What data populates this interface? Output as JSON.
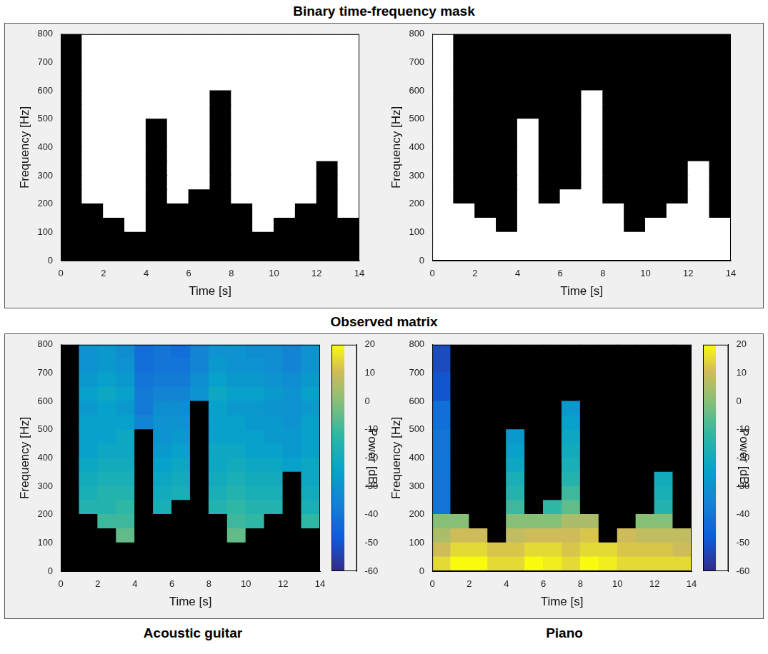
{
  "figure": {
    "titles": [
      "Binary time-frequency mask",
      "Observed matrix"
    ],
    "captions": [
      "Acoustic guitar",
      "Piano"
    ]
  },
  "chart_data": [
    {
      "type": "heatmap",
      "x_label": "Time [s]",
      "y_label": "Frequency [Hz]",
      "xlim": [
        0,
        14
      ],
      "xticks": [
        0,
        2,
        4,
        6,
        8,
        10,
        12,
        14
      ],
      "ylim": [
        0,
        800
      ],
      "yticks": [
        0,
        100,
        200,
        300,
        400,
        500,
        600,
        700,
        800
      ],
      "x_edges": [
        0,
        1,
        2,
        3,
        4,
        5,
        6,
        7,
        8,
        9,
        10,
        11,
        12,
        13,
        14
      ],
      "y_edges": [
        0,
        50,
        100,
        150,
        200,
        250,
        300,
        350,
        400,
        450,
        500,
        550,
        600,
        650,
        700,
        750,
        800
      ],
      "cells": [
        [
          0,
          0,
          0,
          0,
          0,
          0,
          0,
          0,
          0,
          0,
          0,
          0,
          0,
          0
        ],
        [
          0,
          0,
          0,
          0,
          0,
          0,
          0,
          0,
          0,
          0,
          0,
          0,
          0,
          0
        ],
        [
          0,
          0,
          0,
          1,
          0,
          0,
          0,
          0,
          0,
          1,
          0,
          0,
          0,
          0
        ],
        [
          0,
          0,
          1,
          1,
          0,
          0,
          0,
          0,
          0,
          1,
          1,
          0,
          0,
          1
        ],
        [
          0,
          1,
          1,
          1,
          0,
          1,
          0,
          0,
          1,
          1,
          1,
          1,
          0,
          1
        ],
        [
          0,
          1,
          1,
          1,
          0,
          1,
          1,
          0,
          1,
          1,
          1,
          1,
          0,
          1
        ],
        [
          0,
          1,
          1,
          1,
          0,
          1,
          1,
          0,
          1,
          1,
          1,
          1,
          0,
          1
        ],
        [
          0,
          1,
          1,
          1,
          0,
          1,
          1,
          0,
          1,
          1,
          1,
          1,
          1,
          1
        ],
        [
          0,
          1,
          1,
          1,
          0,
          1,
          1,
          0,
          1,
          1,
          1,
          1,
          1,
          1
        ],
        [
          0,
          1,
          1,
          1,
          0,
          1,
          1,
          0,
          1,
          1,
          1,
          1,
          1,
          1
        ],
        [
          0,
          1,
          1,
          1,
          1,
          1,
          1,
          0,
          1,
          1,
          1,
          1,
          1,
          1
        ],
        [
          0,
          1,
          1,
          1,
          1,
          1,
          1,
          0,
          1,
          1,
          1,
          1,
          1,
          1
        ],
        [
          0,
          1,
          1,
          1,
          1,
          1,
          1,
          1,
          1,
          1,
          1,
          1,
          1,
          1
        ],
        [
          0,
          1,
          1,
          1,
          1,
          1,
          1,
          1,
          1,
          1,
          1,
          1,
          1,
          1
        ],
        [
          0,
          1,
          1,
          1,
          1,
          1,
          1,
          1,
          1,
          1,
          1,
          1,
          1,
          1
        ],
        [
          0,
          1,
          1,
          1,
          1,
          1,
          1,
          1,
          1,
          1,
          1,
          1,
          1,
          1
        ]
      ]
    },
    {
      "type": "heatmap",
      "x_label": "Time [s]",
      "y_label": "Frequency [Hz]",
      "xlim": [
        0,
        14
      ],
      "xticks": [
        0,
        2,
        4,
        6,
        8,
        10,
        12,
        14
      ],
      "ylim": [
        0,
        800
      ],
      "yticks": [
        0,
        100,
        200,
        300,
        400,
        500,
        600,
        700,
        800
      ],
      "x_edges": [
        0,
        1,
        2,
        3,
        4,
        5,
        6,
        7,
        8,
        9,
        10,
        11,
        12,
        13,
        14
      ],
      "y_edges": [
        0,
        50,
        100,
        150,
        200,
        250,
        300,
        350,
        400,
        450,
        500,
        550,
        600,
        650,
        700,
        750,
        800
      ],
      "cells": [
        [
          1,
          1,
          1,
          1,
          1,
          1,
          1,
          1,
          1,
          1,
          1,
          1,
          1,
          1
        ],
        [
          1,
          1,
          1,
          1,
          1,
          1,
          1,
          1,
          1,
          1,
          1,
          1,
          1,
          1
        ],
        [
          1,
          1,
          1,
          0,
          1,
          1,
          1,
          1,
          1,
          0,
          1,
          1,
          1,
          1
        ],
        [
          1,
          1,
          0,
          0,
          1,
          1,
          1,
          1,
          1,
          0,
          0,
          1,
          1,
          0
        ],
        [
          1,
          0,
          0,
          0,
          1,
          0,
          1,
          1,
          0,
          0,
          0,
          0,
          1,
          0
        ],
        [
          1,
          0,
          0,
          0,
          1,
          0,
          0,
          1,
          0,
          0,
          0,
          0,
          1,
          0
        ],
        [
          1,
          0,
          0,
          0,
          1,
          0,
          0,
          1,
          0,
          0,
          0,
          0,
          1,
          0
        ],
        [
          1,
          0,
          0,
          0,
          1,
          0,
          0,
          1,
          0,
          0,
          0,
          0,
          0,
          0
        ],
        [
          1,
          0,
          0,
          0,
          1,
          0,
          0,
          1,
          0,
          0,
          0,
          0,
          0,
          0
        ],
        [
          1,
          0,
          0,
          0,
          1,
          0,
          0,
          1,
          0,
          0,
          0,
          0,
          0,
          0
        ],
        [
          1,
          0,
          0,
          0,
          0,
          0,
          0,
          1,
          0,
          0,
          0,
          0,
          0,
          0
        ],
        [
          1,
          0,
          0,
          0,
          0,
          0,
          0,
          1,
          0,
          0,
          0,
          0,
          0,
          0
        ],
        [
          1,
          0,
          0,
          0,
          0,
          0,
          0,
          0,
          0,
          0,
          0,
          0,
          0,
          0
        ],
        [
          1,
          0,
          0,
          0,
          0,
          0,
          0,
          0,
          0,
          0,
          0,
          0,
          0,
          0
        ],
        [
          1,
          0,
          0,
          0,
          0,
          0,
          0,
          0,
          0,
          0,
          0,
          0,
          0,
          0
        ],
        [
          1,
          0,
          0,
          0,
          0,
          0,
          0,
          0,
          0,
          0,
          0,
          0,
          0,
          0
        ]
      ]
    },
    {
      "type": "heatmap",
      "x_label": "Time [s]",
      "y_label": "Frequency [Hz]",
      "xlim": [
        0,
        14
      ],
      "xticks": [
        0,
        2,
        4,
        6,
        8,
        10,
        12,
        14
      ],
      "ylim": [
        0,
        800
      ],
      "yticks": [
        0,
        100,
        200,
        300,
        400,
        500,
        600,
        700,
        800
      ],
      "x_edges": [
        0,
        1,
        2,
        3,
        4,
        5,
        6,
        7,
        8,
        9,
        10,
        11,
        12,
        13,
        14
      ],
      "y_edges": [
        0,
        50,
        100,
        150,
        200,
        250,
        300,
        350,
        400,
        450,
        500,
        550,
        600,
        650,
        700,
        750,
        800
      ],
      "colorbar": {
        "label": "Power [dB]",
        "range": [
          -60,
          20
        ],
        "ticks": [
          -60,
          -50,
          -40,
          -30,
          -20,
          -10,
          0,
          10,
          20
        ]
      },
      "cells": [
        [
          null,
          null,
          null,
          null,
          null,
          null,
          null,
          null,
          null,
          null,
          null,
          null,
          null,
          null
        ],
        [
          null,
          null,
          null,
          null,
          null,
          null,
          null,
          null,
          null,
          null,
          null,
          null,
          null,
          null
        ],
        [
          null,
          null,
          null,
          -5,
          null,
          null,
          null,
          null,
          null,
          -5,
          null,
          null,
          null,
          null
        ],
        [
          null,
          null,
          -10,
          -10,
          null,
          null,
          null,
          null,
          null,
          -10,
          -12,
          null,
          null,
          -12
        ],
        [
          null,
          -15,
          -15,
          -12,
          null,
          -18,
          null,
          null,
          -15,
          -12,
          -15,
          -15,
          null,
          -18
        ],
        [
          null,
          -18,
          -15,
          -15,
          null,
          -20,
          -18,
          null,
          -18,
          -15,
          -18,
          -18,
          null,
          -20
        ],
        [
          null,
          -20,
          -18,
          -18,
          null,
          -22,
          -20,
          null,
          -20,
          -18,
          -20,
          -20,
          null,
          -22
        ],
        [
          null,
          -22,
          -20,
          -20,
          null,
          -25,
          -22,
          null,
          -22,
          -20,
          -22,
          -22,
          -25,
          -22
        ],
        [
          null,
          -25,
          -22,
          -22,
          null,
          -28,
          -25,
          null,
          -22,
          -22,
          -25,
          -25,
          -28,
          -25
        ],
        [
          null,
          -25,
          -25,
          -22,
          null,
          -30,
          -28,
          null,
          -25,
          -25,
          -25,
          -28,
          -28,
          -25
        ],
        [
          null,
          -25,
          -25,
          -25,
          -35,
          -30,
          -30,
          null,
          -25,
          -25,
          -28,
          -28,
          -30,
          -25
        ],
        [
          null,
          -28,
          -25,
          -28,
          -38,
          -32,
          -32,
          null,
          -25,
          -28,
          -28,
          -30,
          -30,
          -28
        ],
        [
          null,
          -25,
          -22,
          -25,
          -38,
          -35,
          -35,
          -30,
          -22,
          -25,
          -25,
          -28,
          -30,
          -25
        ],
        [
          null,
          -28,
          -25,
          -28,
          -40,
          -38,
          -38,
          -32,
          -25,
          -28,
          -28,
          -30,
          -32,
          -28
        ],
        [
          null,
          -30,
          -28,
          -30,
          -42,
          -40,
          -40,
          -35,
          -28,
          -30,
          -30,
          -32,
          -35,
          -30
        ],
        [
          null,
          -30,
          -28,
          -32,
          -42,
          -40,
          -42,
          -35,
          -30,
          -30,
          -32,
          -32,
          -35,
          -30
        ]
      ]
    },
    {
      "type": "heatmap",
      "x_label": "Time [s]",
      "y_label": "Frequency [Hz]",
      "xlim": [
        0,
        14
      ],
      "xticks": [
        0,
        2,
        4,
        6,
        8,
        10,
        12,
        14
      ],
      "ylim": [
        0,
        800
      ],
      "yticks": [
        0,
        100,
        200,
        300,
        400,
        500,
        600,
        700,
        800
      ],
      "x_edges": [
        0,
        1,
        2,
        3,
        4,
        5,
        6,
        7,
        8,
        9,
        10,
        11,
        12,
        13,
        14
      ],
      "y_edges": [
        0,
        50,
        100,
        150,
        200,
        250,
        300,
        350,
        400,
        450,
        500,
        550,
        600,
        650,
        700,
        750,
        800
      ],
      "colorbar": {
        "label": "Power [dB]",
        "range": [
          -60,
          20
        ],
        "ticks": [
          -60,
          -50,
          -40,
          -30,
          -20,
          -10,
          0,
          10,
          20
        ]
      },
      "cells": [
        [
          15,
          20,
          20,
          15,
          15,
          20,
          18,
          15,
          20,
          18,
          15,
          15,
          15,
          15
        ],
        [
          10,
          15,
          15,
          12,
          12,
          15,
          15,
          12,
          15,
          15,
          12,
          12,
          12,
          10
        ],
        [
          5,
          10,
          10,
          null,
          8,
          10,
          10,
          10,
          12,
          null,
          10,
          8,
          8,
          8
        ],
        [
          0,
          0,
          null,
          null,
          0,
          0,
          0,
          5,
          5,
          null,
          null,
          0,
          0,
          null
        ],
        [
          -40,
          null,
          null,
          null,
          -10,
          null,
          -12,
          -5,
          null,
          null,
          null,
          null,
          -15,
          null
        ],
        [
          -40,
          null,
          null,
          null,
          -15,
          null,
          null,
          -10,
          null,
          null,
          null,
          null,
          -18,
          null
        ],
        [
          -40,
          null,
          null,
          null,
          -18,
          null,
          null,
          -15,
          null,
          null,
          null,
          null,
          -20,
          null
        ],
        [
          -40,
          null,
          null,
          null,
          -22,
          null,
          null,
          -18,
          null,
          null,
          null,
          null,
          null,
          null
        ],
        [
          -40,
          null,
          null,
          null,
          -25,
          null,
          null,
          -20,
          null,
          null,
          null,
          null,
          null,
          null
        ],
        [
          -40,
          null,
          null,
          null,
          -28,
          null,
          null,
          -22,
          null,
          null,
          null,
          null,
          null,
          null
        ],
        [
          -42,
          null,
          null,
          null,
          null,
          null,
          null,
          -25,
          null,
          null,
          null,
          null,
          null,
          null
        ],
        [
          -42,
          null,
          null,
          null,
          null,
          null,
          null,
          -28,
          null,
          null,
          null,
          null,
          null,
          null
        ],
        [
          -50,
          null,
          null,
          null,
          null,
          null,
          null,
          null,
          null,
          null,
          null,
          null,
          null,
          null
        ],
        [
          -50,
          null,
          null,
          null,
          null,
          null,
          null,
          null,
          null,
          null,
          null,
          null,
          null,
          null
        ],
        [
          -52,
          null,
          null,
          null,
          null,
          null,
          null,
          null,
          null,
          null,
          null,
          null,
          null,
          null
        ],
        [
          -52,
          null,
          null,
          null,
          null,
          null,
          null,
          null,
          null,
          null,
          null,
          null,
          null,
          null
        ]
      ]
    }
  ]
}
